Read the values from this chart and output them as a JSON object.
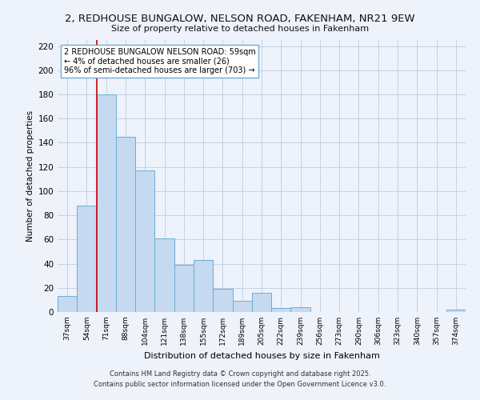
{
  "title": "2, REDHOUSE BUNGALOW, NELSON ROAD, FAKENHAM, NR21 9EW",
  "subtitle": "Size of property relative to detached houses in Fakenham",
  "xlabel": "Distribution of detached houses by size in Fakenham",
  "ylabel": "Number of detached properties",
  "bar_labels": [
    "37sqm",
    "54sqm",
    "71sqm",
    "88sqm",
    "104sqm",
    "121sqm",
    "138sqm",
    "155sqm",
    "172sqm",
    "189sqm",
    "205sqm",
    "222sqm",
    "239sqm",
    "256sqm",
    "273sqm",
    "290sqm",
    "306sqm",
    "323sqm",
    "340sqm",
    "357sqm",
    "374sqm"
  ],
  "bar_heights": [
    13,
    88,
    180,
    145,
    117,
    61,
    39,
    43,
    19,
    9,
    16,
    3,
    4,
    0,
    0,
    0,
    0,
    0,
    0,
    0,
    2
  ],
  "bar_color": "#c5d9f0",
  "bar_edge_color": "#6baed6",
  "ylim": [
    0,
    225
  ],
  "yticks": [
    0,
    20,
    40,
    60,
    80,
    100,
    120,
    140,
    160,
    180,
    200,
    220
  ],
  "vline_color": "#cc0000",
  "annotation_title": "2 REDHOUSE BUNGALOW NELSON ROAD: 59sqm",
  "annotation_line1": "← 4% of detached houses are smaller (26)",
  "annotation_line2": "96% of semi-detached houses are larger (703) →",
  "annotation_box_color": "#ffffff",
  "annotation_box_edge": "#6baed6",
  "bg_color": "#edf2fb",
  "grid_color": "#c8d0e0",
  "footer1": "Contains HM Land Registry data © Crown copyright and database right 2025.",
  "footer2": "Contains public sector information licensed under the Open Government Licence v3.0."
}
